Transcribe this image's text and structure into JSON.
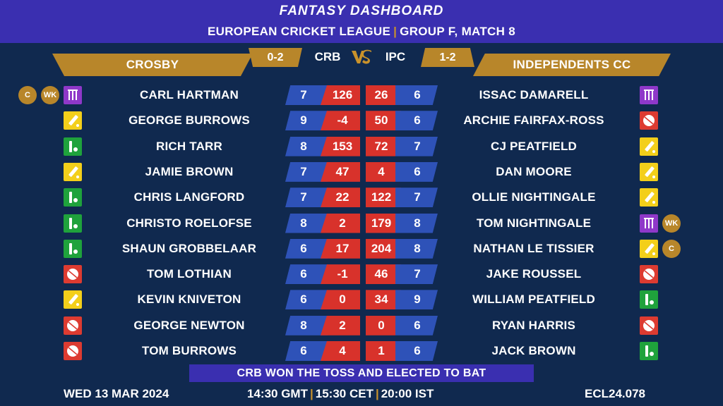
{
  "header": {
    "title": "FANTASY DASHBOARD",
    "league": "EUROPEAN CRICKET LEAGUE",
    "separator": "|",
    "group_match": "GROUP F, MATCH 8"
  },
  "colors": {
    "background": "#10294f",
    "header": "#3a2fb0",
    "gold": "#b8862a",
    "blue_cell": "#2e52b8",
    "red_cell": "#d8322b",
    "batter": "#f3cf1a",
    "bowler": "#dd3b31",
    "allrounder": "#1fa23c",
    "wicketkeeper": "#8f38c9"
  },
  "match": {
    "left_team": "CROSBY",
    "right_team": "INDEPENDENTS CC",
    "left_record": "0-2",
    "right_record": "1-2",
    "left_code": "CRB",
    "right_code": "IPC",
    "vs": "VS"
  },
  "left_players": [
    {
      "name": "CARL HARTMAN",
      "val1": "7",
      "val2": "126",
      "role": "wicketkeeper-icon",
      "badges": [
        "C",
        "WK"
      ]
    },
    {
      "name": "GEORGE BURROWS",
      "val1": "9",
      "val2": "-4",
      "role": "batter-icon",
      "badges": []
    },
    {
      "name": "RICH TARR",
      "val1": "8",
      "val2": "153",
      "role": "allrounder-icon",
      "badges": []
    },
    {
      "name": "JAMIE BROWN",
      "val1": "7",
      "val2": "47",
      "role": "batter-icon",
      "badges": []
    },
    {
      "name": "CHRIS LANGFORD",
      "val1": "7",
      "val2": "22",
      "role": "allrounder-icon",
      "badges": []
    },
    {
      "name": "CHRISTO ROELOFSE",
      "val1": "8",
      "val2": "2",
      "role": "allrounder-icon",
      "badges": []
    },
    {
      "name": "SHAUN GROBBELAAR",
      "val1": "6",
      "val2": "17",
      "role": "allrounder-icon",
      "badges": []
    },
    {
      "name": "TOM LOTHIAN",
      "val1": "6",
      "val2": "-1",
      "role": "bowler-icon",
      "badges": []
    },
    {
      "name": "KEVIN KNIVETON",
      "val1": "6",
      "val2": "0",
      "role": "batter-icon",
      "badges": []
    },
    {
      "name": "GEORGE NEWTON",
      "val1": "8",
      "val2": "2",
      "role": "bowler-icon",
      "badges": []
    },
    {
      "name": "TOM BURROWS",
      "val1": "6",
      "val2": "4",
      "role": "bowler-icon",
      "badges": []
    }
  ],
  "right_players": [
    {
      "name": "ISSAC DAMARELL",
      "val1": "26",
      "val2": "6",
      "role": "wicketkeeper-icon",
      "badges": []
    },
    {
      "name": "ARCHIE FAIRFAX-ROSS",
      "val1": "50",
      "val2": "6",
      "role": "bowler-icon",
      "badges": []
    },
    {
      "name": "CJ PEATFIELD",
      "val1": "72",
      "val2": "7",
      "role": "batter-icon",
      "badges": []
    },
    {
      "name": "DAN MOORE",
      "val1": "4",
      "val2": "6",
      "role": "batter-icon",
      "badges": []
    },
    {
      "name": "OLLIE NIGHTINGALE",
      "val1": "122",
      "val2": "7",
      "role": "batter-icon",
      "badges": []
    },
    {
      "name": "TOM NIGHTINGALE",
      "val1": "179",
      "val2": "8",
      "role": "wicketkeeper-icon",
      "badges": [
        "WK"
      ]
    },
    {
      "name": "NATHAN LE TISSIER",
      "val1": "204",
      "val2": "8",
      "role": "batter-icon",
      "badges": [
        "C"
      ]
    },
    {
      "name": "JAKE ROUSSEL",
      "val1": "46",
      "val2": "7",
      "role": "bowler-icon",
      "badges": []
    },
    {
      "name": "WILLIAM PEATFIELD",
      "val1": "34",
      "val2": "9",
      "role": "allrounder-icon",
      "badges": []
    },
    {
      "name": "RYAN HARRIS",
      "val1": "0",
      "val2": "6",
      "role": "bowler-icon",
      "badges": []
    },
    {
      "name": "JACK BROWN",
      "val1": "1",
      "val2": "6",
      "role": "allrounder-icon",
      "badges": []
    }
  ],
  "toss": "CRB WON THE TOSS AND ELECTED TO BAT",
  "footer": {
    "date": "WED 13 MAR 2024",
    "time_gmt": "14:30 GMT",
    "time_cet": "15:30 CET",
    "time_ist": "20:00 IST",
    "separator": "|",
    "match_code": "ECL24.078"
  }
}
